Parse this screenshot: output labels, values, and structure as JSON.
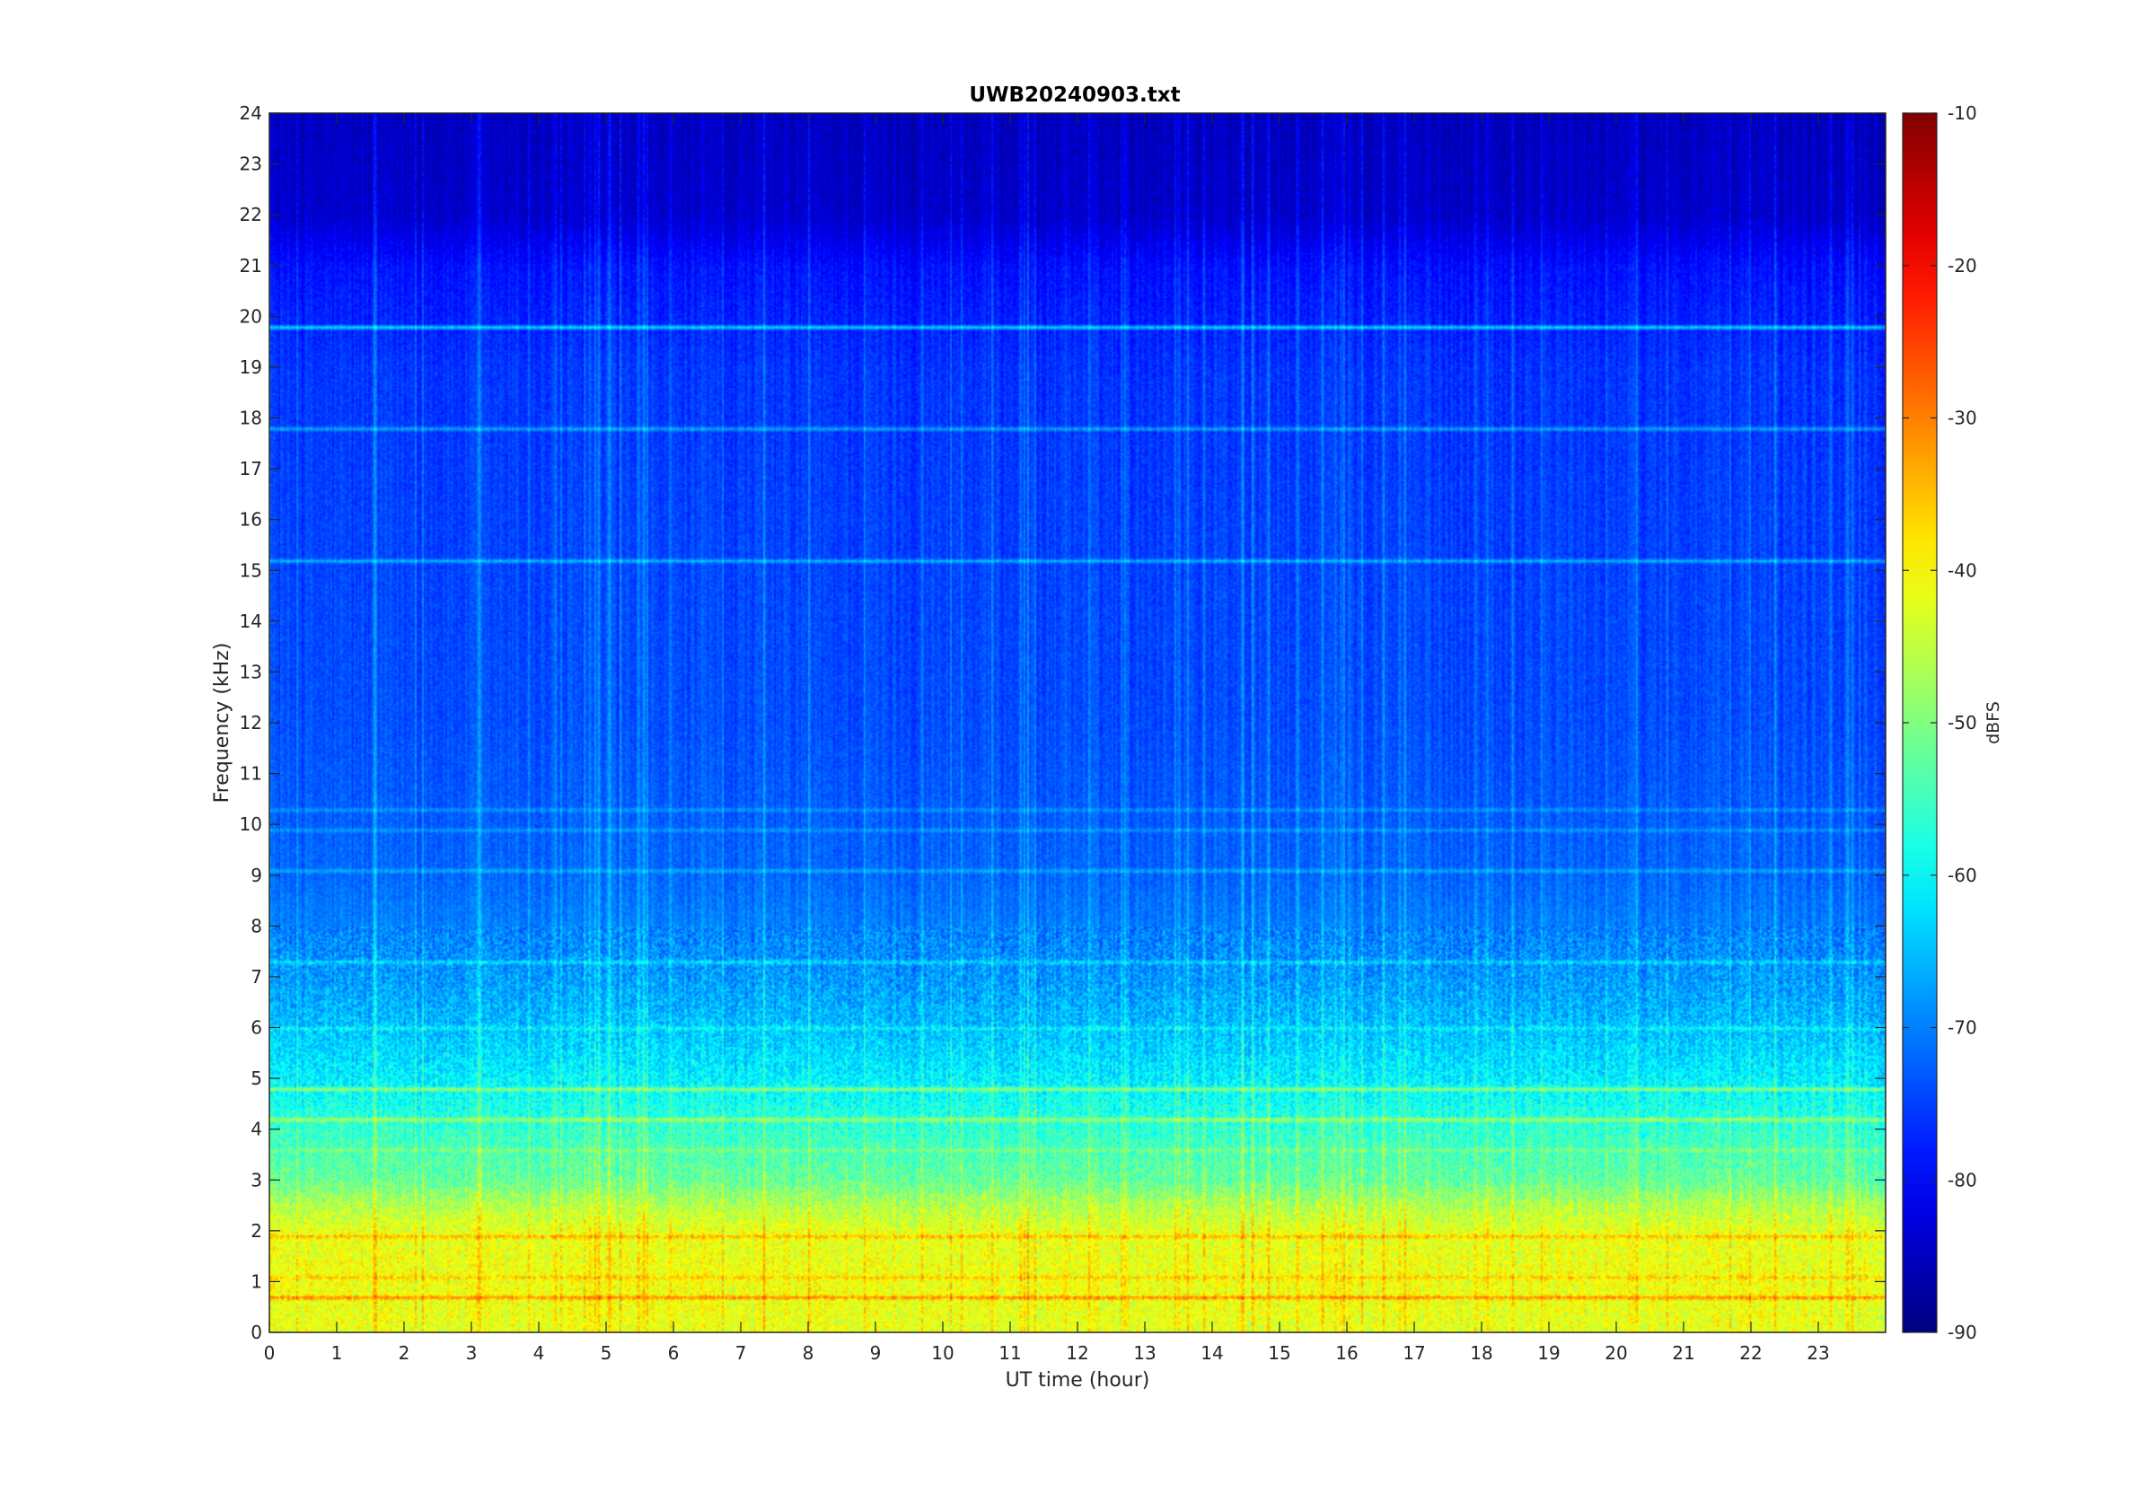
{
  "chart_data": {
    "type": "heatmap",
    "title": "UWB20240903.txt",
    "xlabel": "UT time (hour)",
    "ylabel": "Frequency (kHz)",
    "xlim": [
      0,
      24
    ],
    "ylim": [
      0,
      24
    ],
    "x_ticks": [
      "0",
      "1",
      "2",
      "3",
      "4",
      "5",
      "6",
      "7",
      "8",
      "9",
      "10",
      "11",
      "12",
      "13",
      "14",
      "15",
      "16",
      "17",
      "18",
      "19",
      "20",
      "21",
      "22",
      "23"
    ],
    "y_ticks": [
      "0",
      "1",
      "2",
      "3",
      "4",
      "5",
      "6",
      "7",
      "8",
      "9",
      "10",
      "11",
      "12",
      "13",
      "14",
      "15",
      "16",
      "17",
      "18",
      "19",
      "20",
      "21",
      "22",
      "23",
      "24"
    ],
    "colormap": "jet",
    "colorbar": {
      "label": "dBFS",
      "range": [
        -90,
        -10
      ],
      "ticks": [
        "-10",
        "-20",
        "-30",
        "-40",
        "-50",
        "-60",
        "-70",
        "-80",
        "-90"
      ]
    },
    "background_level_profile": [
      {
        "freq_khz": 0,
        "dbfs": -42
      },
      {
        "freq_khz": 1,
        "dbfs": -41
      },
      {
        "freq_khz": 2,
        "dbfs": -42
      },
      {
        "freq_khz": 2.5,
        "dbfs": -46
      },
      {
        "freq_khz": 3,
        "dbfs": -52
      },
      {
        "freq_khz": 4,
        "dbfs": -56
      },
      {
        "freq_khz": 5,
        "dbfs": -61
      },
      {
        "freq_khz": 6,
        "dbfs": -65
      },
      {
        "freq_khz": 7,
        "dbfs": -68
      },
      {
        "freq_khz": 8,
        "dbfs": -70
      },
      {
        "freq_khz": 9,
        "dbfs": -72
      },
      {
        "freq_khz": 12,
        "dbfs": -74
      },
      {
        "freq_khz": 16,
        "dbfs": -75
      },
      {
        "freq_khz": 19,
        "dbfs": -76
      },
      {
        "freq_khz": 21,
        "dbfs": -79
      },
      {
        "freq_khz": 22,
        "dbfs": -84
      },
      {
        "freq_khz": 24,
        "dbfs": -85
      }
    ],
    "persistent_lines": [
      {
        "freq_khz": 19.8,
        "dbfs": -62
      },
      {
        "freq_khz": 17.8,
        "dbfs": -66
      },
      {
        "freq_khz": 15.2,
        "dbfs": -66
      },
      {
        "freq_khz": 10.3,
        "dbfs": -68
      },
      {
        "freq_khz": 9.9,
        "dbfs": -68
      },
      {
        "freq_khz": 9.1,
        "dbfs": -66
      },
      {
        "freq_khz": 7.3,
        "dbfs": -62
      },
      {
        "freq_khz": 6.0,
        "dbfs": -60
      },
      {
        "freq_khz": 4.8,
        "dbfs": -48
      },
      {
        "freq_khz": 4.2,
        "dbfs": -46
      },
      {
        "freq_khz": 3.6,
        "dbfs": -50
      },
      {
        "freq_khz": 1.9,
        "dbfs": -34
      },
      {
        "freq_khz": 1.1,
        "dbfs": -36
      },
      {
        "freq_khz": 0.7,
        "dbfs": -30
      }
    ]
  }
}
